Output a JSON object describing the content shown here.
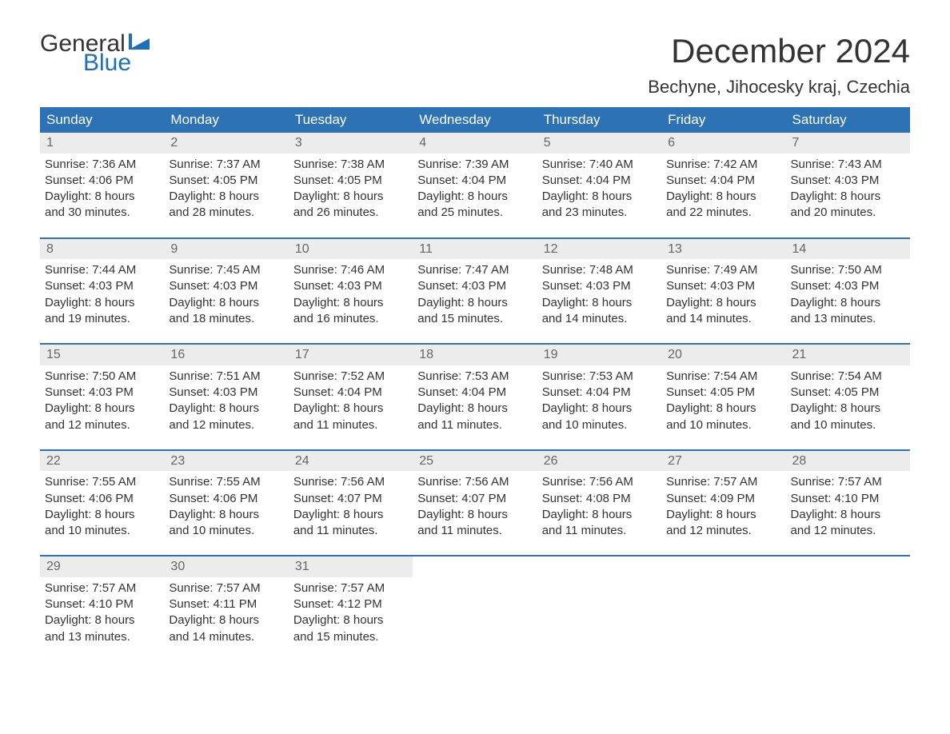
{
  "logo": {
    "text_general": "General",
    "text_blue": "Blue",
    "brand_color": "#1d70b7"
  },
  "title": "December 2024",
  "location": "Bechyne, Jihocesky kraj, Czechia",
  "colors": {
    "header_bg": "#2d72b5",
    "header_text": "#ffffff",
    "daynum_bg": "#ececec",
    "daynum_text": "#666666",
    "body_text": "#333333",
    "rule": "#2d72b5"
  },
  "weekdays": [
    "Sunday",
    "Monday",
    "Tuesday",
    "Wednesday",
    "Thursday",
    "Friday",
    "Saturday"
  ],
  "weeks": [
    [
      {
        "n": "1",
        "sr": "Sunrise: 7:36 AM",
        "ss": "Sunset: 4:06 PM",
        "d1": "Daylight: 8 hours",
        "d2": "and 30 minutes."
      },
      {
        "n": "2",
        "sr": "Sunrise: 7:37 AM",
        "ss": "Sunset: 4:05 PM",
        "d1": "Daylight: 8 hours",
        "d2": "and 28 minutes."
      },
      {
        "n": "3",
        "sr": "Sunrise: 7:38 AM",
        "ss": "Sunset: 4:05 PM",
        "d1": "Daylight: 8 hours",
        "d2": "and 26 minutes."
      },
      {
        "n": "4",
        "sr": "Sunrise: 7:39 AM",
        "ss": "Sunset: 4:04 PM",
        "d1": "Daylight: 8 hours",
        "d2": "and 25 minutes."
      },
      {
        "n": "5",
        "sr": "Sunrise: 7:40 AM",
        "ss": "Sunset: 4:04 PM",
        "d1": "Daylight: 8 hours",
        "d2": "and 23 minutes."
      },
      {
        "n": "6",
        "sr": "Sunrise: 7:42 AM",
        "ss": "Sunset: 4:04 PM",
        "d1": "Daylight: 8 hours",
        "d2": "and 22 minutes."
      },
      {
        "n": "7",
        "sr": "Sunrise: 7:43 AM",
        "ss": "Sunset: 4:03 PM",
        "d1": "Daylight: 8 hours",
        "d2": "and 20 minutes."
      }
    ],
    [
      {
        "n": "8",
        "sr": "Sunrise: 7:44 AM",
        "ss": "Sunset: 4:03 PM",
        "d1": "Daylight: 8 hours",
        "d2": "and 19 minutes."
      },
      {
        "n": "9",
        "sr": "Sunrise: 7:45 AM",
        "ss": "Sunset: 4:03 PM",
        "d1": "Daylight: 8 hours",
        "d2": "and 18 minutes."
      },
      {
        "n": "10",
        "sr": "Sunrise: 7:46 AM",
        "ss": "Sunset: 4:03 PM",
        "d1": "Daylight: 8 hours",
        "d2": "and 16 minutes."
      },
      {
        "n": "11",
        "sr": "Sunrise: 7:47 AM",
        "ss": "Sunset: 4:03 PM",
        "d1": "Daylight: 8 hours",
        "d2": "and 15 minutes."
      },
      {
        "n": "12",
        "sr": "Sunrise: 7:48 AM",
        "ss": "Sunset: 4:03 PM",
        "d1": "Daylight: 8 hours",
        "d2": "and 14 minutes."
      },
      {
        "n": "13",
        "sr": "Sunrise: 7:49 AM",
        "ss": "Sunset: 4:03 PM",
        "d1": "Daylight: 8 hours",
        "d2": "and 14 minutes."
      },
      {
        "n": "14",
        "sr": "Sunrise: 7:50 AM",
        "ss": "Sunset: 4:03 PM",
        "d1": "Daylight: 8 hours",
        "d2": "and 13 minutes."
      }
    ],
    [
      {
        "n": "15",
        "sr": "Sunrise: 7:50 AM",
        "ss": "Sunset: 4:03 PM",
        "d1": "Daylight: 8 hours",
        "d2": "and 12 minutes."
      },
      {
        "n": "16",
        "sr": "Sunrise: 7:51 AM",
        "ss": "Sunset: 4:03 PM",
        "d1": "Daylight: 8 hours",
        "d2": "and 12 minutes."
      },
      {
        "n": "17",
        "sr": "Sunrise: 7:52 AM",
        "ss": "Sunset: 4:04 PM",
        "d1": "Daylight: 8 hours",
        "d2": "and 11 minutes."
      },
      {
        "n": "18",
        "sr": "Sunrise: 7:53 AM",
        "ss": "Sunset: 4:04 PM",
        "d1": "Daylight: 8 hours",
        "d2": "and 11 minutes."
      },
      {
        "n": "19",
        "sr": "Sunrise: 7:53 AM",
        "ss": "Sunset: 4:04 PM",
        "d1": "Daylight: 8 hours",
        "d2": "and 10 minutes."
      },
      {
        "n": "20",
        "sr": "Sunrise: 7:54 AM",
        "ss": "Sunset: 4:05 PM",
        "d1": "Daylight: 8 hours",
        "d2": "and 10 minutes."
      },
      {
        "n": "21",
        "sr": "Sunrise: 7:54 AM",
        "ss": "Sunset: 4:05 PM",
        "d1": "Daylight: 8 hours",
        "d2": "and 10 minutes."
      }
    ],
    [
      {
        "n": "22",
        "sr": "Sunrise: 7:55 AM",
        "ss": "Sunset: 4:06 PM",
        "d1": "Daylight: 8 hours",
        "d2": "and 10 minutes."
      },
      {
        "n": "23",
        "sr": "Sunrise: 7:55 AM",
        "ss": "Sunset: 4:06 PM",
        "d1": "Daylight: 8 hours",
        "d2": "and 10 minutes."
      },
      {
        "n": "24",
        "sr": "Sunrise: 7:56 AM",
        "ss": "Sunset: 4:07 PM",
        "d1": "Daylight: 8 hours",
        "d2": "and 11 minutes."
      },
      {
        "n": "25",
        "sr": "Sunrise: 7:56 AM",
        "ss": "Sunset: 4:07 PM",
        "d1": "Daylight: 8 hours",
        "d2": "and 11 minutes."
      },
      {
        "n": "26",
        "sr": "Sunrise: 7:56 AM",
        "ss": "Sunset: 4:08 PM",
        "d1": "Daylight: 8 hours",
        "d2": "and 11 minutes."
      },
      {
        "n": "27",
        "sr": "Sunrise: 7:57 AM",
        "ss": "Sunset: 4:09 PM",
        "d1": "Daylight: 8 hours",
        "d2": "and 12 minutes."
      },
      {
        "n": "28",
        "sr": "Sunrise: 7:57 AM",
        "ss": "Sunset: 4:10 PM",
        "d1": "Daylight: 8 hours",
        "d2": "and 12 minutes."
      }
    ],
    [
      {
        "n": "29",
        "sr": "Sunrise: 7:57 AM",
        "ss": "Sunset: 4:10 PM",
        "d1": "Daylight: 8 hours",
        "d2": "and 13 minutes."
      },
      {
        "n": "30",
        "sr": "Sunrise: 7:57 AM",
        "ss": "Sunset: 4:11 PM",
        "d1": "Daylight: 8 hours",
        "d2": "and 14 minutes."
      },
      {
        "n": "31",
        "sr": "Sunrise: 7:57 AM",
        "ss": "Sunset: 4:12 PM",
        "d1": "Daylight: 8 hours",
        "d2": "and 15 minutes."
      },
      null,
      null,
      null,
      null
    ]
  ]
}
